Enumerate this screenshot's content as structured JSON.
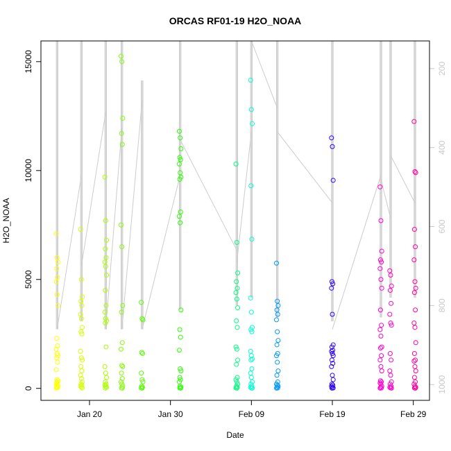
{
  "chart_data": {
    "type": "scatter",
    "title": "ORCAS RF01-19 H2O_NOAA",
    "xlabel": "Date",
    "ylabel": "H2O_NOAA",
    "xlim": [
      "2016-01-14",
      "2016-03-02"
    ],
    "ylim": [
      -550,
      15950
    ],
    "y_ticks": [
      0,
      5000,
      10000,
      15000
    ],
    "x_ticks": [
      {
        "date": "2016-01-20",
        "label": "Jan 20"
      },
      {
        "date": "2016-01-30",
        "label": "Jan 30"
      },
      {
        "date": "2016-02-09",
        "label": "Feb 09"
      },
      {
        "date": "2016-02-19",
        "label": "Feb 19"
      },
      {
        "date": "2016-02-29",
        "label": "Feb 29"
      }
    ],
    "secondary_axis": {
      "side": "right",
      "color": "#c8c8c8",
      "reversed": true,
      "ylim": [
        1040,
        130
      ],
      "ticks": [
        200,
        400,
        600,
        800,
        1000
      ]
    },
    "flights": [
      {
        "date": "2016-01-16.0",
        "color": "#FFFF00",
        "values": [
          7100,
          6000,
          5800,
          5500,
          5100,
          4900,
          4300,
          3800,
          2300,
          1950,
          1800,
          1600,
          1500,
          1400,
          1200,
          850,
          400,
          350,
          300,
          250,
          200,
          150,
          100,
          60,
          30,
          10
        ]
      },
      {
        "date": "2016-01-19.0",
        "color": "#D4FF00",
        "values": [
          7300,
          5000,
          4200,
          4000,
          3800,
          3400,
          3200,
          2800,
          2600,
          2500,
          1700,
          1400,
          1300,
          1000,
          800,
          600,
          450,
          300,
          200,
          150,
          100,
          50,
          10
        ]
      },
      {
        "date": "2016-01-22.0",
        "color": "#AAFF00",
        "values": [
          9700,
          7700,
          6800,
          6400,
          6000,
          5800,
          5600,
          5200,
          4500,
          3800,
          3500,
          3200,
          3100,
          3000,
          1900,
          1000,
          700,
          500,
          300,
          200,
          150,
          100,
          50,
          10
        ]
      },
      {
        "date": "2016-01-24.0",
        "color": "#7FFF00",
        "values": [
          15250,
          15000,
          12400,
          11700,
          11200,
          7500,
          6500,
          3800,
          3500,
          2100,
          1800,
          1050,
          1000,
          700,
          450,
          300,
          200,
          100,
          20,
          10
        ]
      },
      {
        "date": "2016-01-26.5",
        "color": "#55FF00",
        "values": [
          3950,
          3200,
          3150,
          1650,
          1600,
          700,
          400,
          300,
          100,
          50,
          20,
          10
        ]
      },
      {
        "date": "2016-01-31.2",
        "color": "#2AFF00",
        "values": [
          11800,
          11500,
          11000,
          10600,
          10500,
          10300,
          9900,
          9700,
          9600,
          8100,
          7900,
          7600,
          3600,
          2700,
          2350,
          1750,
          900,
          800,
          500,
          400,
          300,
          100,
          50,
          20,
          10
        ]
      },
      {
        "date": "2016-02-07.2",
        "color": "#00FF80",
        "values": [
          10300,
          6700,
          5300,
          4900,
          4600,
          4400,
          4100,
          3700,
          3100,
          2800,
          1900,
          1800,
          1300,
          1100,
          500,
          400,
          300,
          200,
          100,
          50,
          20,
          10
        ]
      },
      {
        "date": "2016-02-09.0",
        "color": "#00FFD4",
        "values": [
          14150,
          12800,
          12150,
          9300,
          6850,
          4150,
          3500,
          2800,
          2700,
          2600,
          1700,
          1500,
          1350,
          1300,
          900,
          700,
          500,
          300,
          200,
          100,
          50,
          20,
          10
        ]
      },
      {
        "date": "2016-02-12.2",
        "color": "#0099FF",
        "values": [
          5750,
          4000,
          3800,
          3600,
          3400,
          3150,
          2600,
          2200,
          2000,
          1600,
          1500,
          1200,
          800,
          600,
          300,
          200,
          150,
          100,
          50,
          20,
          10
        ]
      },
      {
        "date": "2016-02-19.0",
        "color": "#2A00FF",
        "values": [
          11500,
          11100,
          9550,
          4900,
          4800,
          4600,
          3400,
          2000,
          1900,
          1750,
          1700,
          1600,
          1500,
          1300,
          1150,
          1000,
          600,
          400,
          200,
          150,
          100,
          50,
          20,
          10
        ]
      },
      {
        "date": "2016-02-25.0",
        "color": "#FF00D4",
        "values": [
          9250,
          7700,
          6300,
          5900,
          5800,
          5500,
          5000,
          4600,
          3600,
          2900,
          2700,
          2400,
          1900,
          1850,
          1500,
          1300,
          1000,
          800,
          350,
          300,
          250,
          200,
          100,
          50,
          20,
          10
        ]
      },
      {
        "date": "2016-02-26.2",
        "color": "#FF00C8",
        "values": [
          5400,
          5200,
          4700,
          4500,
          3900,
          3400,
          3000,
          2900,
          1600,
          1300,
          800,
          600,
          300,
          200,
          100,
          50,
          20,
          10
        ]
      },
      {
        "date": "2016-02-29.2",
        "color": "#FF00A0",
        "values": [
          12250,
          9950,
          9900,
          7300,
          6500,
          5900,
          4900,
          4600,
          4400,
          3600,
          3000,
          2800,
          2100,
          1600,
          1300,
          1250,
          1000,
          800,
          500,
          300,
          200,
          100,
          50,
          20,
          10
        ]
      }
    ],
    "pressure_trace_color": "#cccccc",
    "pressure_flights": [
      {
        "date": "2016-01-16.0",
        "spikes": [
          130,
          860
        ]
      },
      {
        "date": "2016-01-19.0",
        "spikes": [
          130,
          840
        ]
      },
      {
        "date": "2016-01-22.0",
        "spikes": [
          130,
          860
        ]
      },
      {
        "date": "2016-01-24.0",
        "spikes": [
          130,
          860
        ]
      },
      {
        "date": "2016-01-26.5",
        "spikes": [
          230,
          860
        ]
      },
      {
        "date": "2016-01-31.2",
        "spikes": [
          130,
          810
        ]
      },
      {
        "date": "2016-02-07.2",
        "spikes": [
          130,
          800
        ]
      },
      {
        "date": "2016-02-09.0",
        "spikes": [
          130,
          780
        ]
      },
      {
        "date": "2016-02-12.2",
        "spikes": [
          130,
          830
        ]
      },
      {
        "date": "2016-02-19.0",
        "spikes": [
          130,
          840
        ]
      },
      {
        "date": "2016-02-25.0",
        "spikes": [
          130,
          830
        ]
      },
      {
        "date": "2016-02-26.2",
        "spikes": [
          130,
          780
        ]
      },
      {
        "date": "2016-02-29.2",
        "spikes": [
          130,
          780
        ]
      }
    ],
    "pressure_links": [
      [
        "2016-01-16.0",
        860,
        "2016-01-19.0",
        470
      ],
      [
        "2016-01-19.0",
        700,
        "2016-01-22.0",
        310
      ],
      [
        "2016-01-22.0",
        860,
        "2016-01-24.0",
        350
      ],
      [
        "2016-01-24.0",
        860,
        "2016-01-26.5",
        280
      ],
      [
        "2016-01-26.5",
        860,
        "2016-01-31.2",
        470
      ],
      [
        "2016-01-31.2",
        380,
        "2016-02-07.2",
        660
      ],
      [
        "2016-02-07.2",
        690,
        "2016-02-09.0",
        360
      ],
      [
        "2016-02-09.0",
        130,
        "2016-02-12.2",
        300
      ],
      [
        "2016-02-12.2",
        360,
        "2016-02-19.0",
        540
      ],
      [
        "2016-02-19.0",
        860,
        "2016-02-25.0",
        470
      ],
      [
        "2016-02-25.0",
        480,
        "2016-02-26.2",
        580
      ],
      [
        "2016-02-26.2",
        420,
        "2016-02-29.2",
        540
      ]
    ]
  }
}
